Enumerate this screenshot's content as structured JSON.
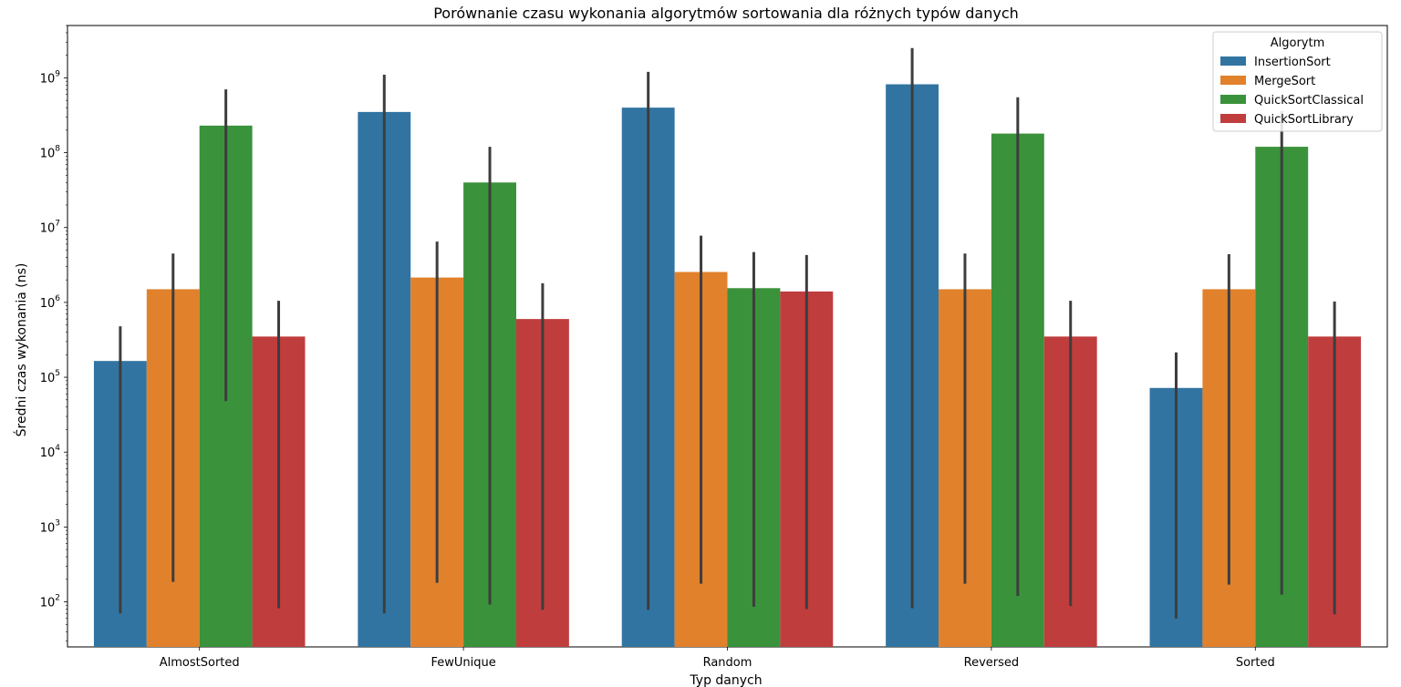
{
  "chart_data": {
    "type": "bar",
    "title": "Porównanie czasu wykonania algorytmów sortowania dla różnych typów danych",
    "xlabel": "Typ danych",
    "ylabel": "Średni czas wykonania (ns)",
    "yscale": "log",
    "ylim": [
      25,
      5000000000
    ],
    "yticks": [
      {
        "value": 100,
        "base": "10",
        "exp": "2"
      },
      {
        "value": 1000,
        "base": "10",
        "exp": "3"
      },
      {
        "value": 10000,
        "base": "10",
        "exp": "4"
      },
      {
        "value": 100000,
        "base": "10",
        "exp": "5"
      },
      {
        "value": 1000000,
        "base": "10",
        "exp": "6"
      },
      {
        "value": 10000000,
        "base": "10",
        "exp": "7"
      },
      {
        "value": 100000000,
        "base": "10",
        "exp": "8"
      },
      {
        "value": 1000000000,
        "base": "10",
        "exp": "9"
      }
    ],
    "categories": [
      "AlmostSorted",
      "FewUnique",
      "Random",
      "Reversed",
      "Sorted"
    ],
    "legend": {
      "title": "Algorytm",
      "position": "top-right"
    },
    "series": [
      {
        "name": "InsertionSort",
        "color": "#3274a1",
        "values": [
          165000,
          350000000,
          400000000,
          820000000,
          72000
        ],
        "err_low": [
          70,
          70,
          78,
          82,
          60
        ],
        "err_high": [
          480000,
          1100000000,
          1200000000,
          2500000000,
          215000
        ]
      },
      {
        "name": "MergeSort",
        "color": "#e1812c",
        "values": [
          1500000,
          2150000,
          2550000,
          1500000,
          1500000
        ],
        "err_low": [
          185,
          180,
          175,
          175,
          170
        ],
        "err_high": [
          4500000,
          6500000,
          7800000,
          4500000,
          4400000
        ]
      },
      {
        "name": "QuickSortClassical",
        "color": "#3a923a",
        "values": [
          230000000,
          40000000,
          1550000,
          180000000,
          120000000
        ],
        "err_low": [
          48000,
          92,
          86,
          120,
          125
        ],
        "err_high": [
          700000000,
          120000000,
          4700000,
          550000000,
          360000000
        ]
      },
      {
        "name": "QuickSortLibrary",
        "color": "#c03d3e",
        "values": [
          350000,
          600000,
          1400000,
          350000,
          350000
        ],
        "err_low": [
          82,
          78,
          80,
          88,
          68
        ],
        "err_high": [
          1050000,
          1800000,
          4300000,
          1050000,
          1030000
        ]
      }
    ]
  }
}
